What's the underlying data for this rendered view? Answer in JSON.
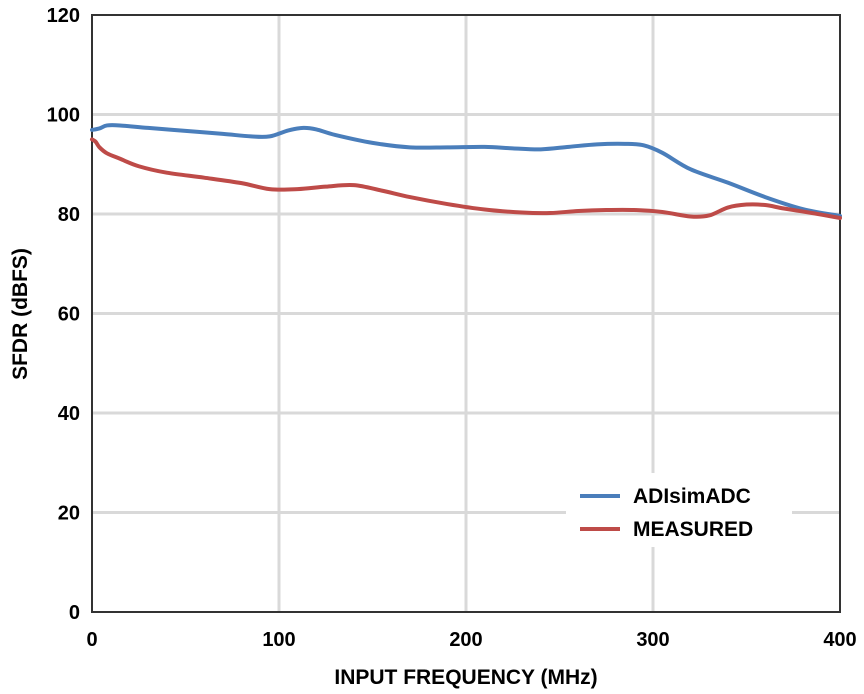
{
  "chart_data": {
    "type": "line",
    "xlabel": "INPUT FREQUENCY (MHz)",
    "ylabel": "SFDR (dBFS)",
    "xlim": [
      0,
      400
    ],
    "ylim": [
      0,
      120
    ],
    "xticks": [
      "0",
      "100",
      "200",
      "300",
      "400"
    ],
    "yticks": [
      "0",
      "20",
      "40",
      "60",
      "80",
      "100",
      "120"
    ],
    "grid": true,
    "legend_position": "bottom-right",
    "series": [
      {
        "name": "ADIsimADC",
        "color": "#4a7ebb",
        "x": [
          0,
          4,
          8,
          15,
          30,
          50,
          70,
          85,
          95,
          105,
          113,
          120,
          130,
          150,
          170,
          190,
          210,
          225,
          240,
          255,
          270,
          285,
          295,
          305,
          320,
          340,
          360,
          380,
          400
        ],
        "y": [
          96.9,
          97.2,
          97.8,
          97.8,
          97.3,
          96.7,
          96.1,
          95.6,
          95.6,
          96.8,
          97.3,
          97.0,
          95.9,
          94.3,
          93.4,
          93.4,
          93.5,
          93.2,
          93.0,
          93.5,
          94.0,
          94.1,
          93.8,
          92.3,
          89.0,
          86.3,
          83.4,
          81.0,
          79.6
        ]
      },
      {
        "name": "MEASURED",
        "color": "#be4b48",
        "x": [
          0,
          2,
          4,
          8,
          15,
          25,
          40,
          60,
          80,
          95,
          110,
          125,
          140,
          155,
          170,
          190,
          210,
          230,
          245,
          260,
          275,
          290,
          305,
          320,
          330,
          340,
          350,
          360,
          370,
          385,
          400
        ],
        "y": [
          95.0,
          94.5,
          93.4,
          92.2,
          91.1,
          89.6,
          88.3,
          87.3,
          86.2,
          85.0,
          85.0,
          85.5,
          85.8,
          84.7,
          83.4,
          82.0,
          80.9,
          80.3,
          80.2,
          80.6,
          80.8,
          80.8,
          80.4,
          79.5,
          79.7,
          81.3,
          81.9,
          81.8,
          81.1,
          80.2,
          79.2
        ]
      }
    ]
  }
}
